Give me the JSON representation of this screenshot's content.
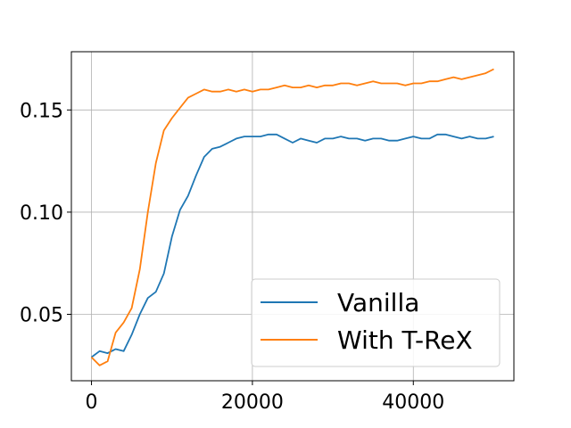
{
  "chart_data": {
    "type": "line",
    "title": "",
    "xlabel": "",
    "ylabel": "",
    "xlim": [
      -2500,
      52500
    ],
    "ylim": [
      0.0175,
      0.1785
    ],
    "xticks": [
      0,
      20000,
      40000
    ],
    "yticks": [
      0.05,
      0.1,
      0.15
    ],
    "xtick_labels": [
      "0",
      "20000",
      "40000"
    ],
    "ytick_labels": [
      "0.05",
      "0.10",
      "0.15"
    ],
    "grid": true,
    "legend_position": "lower-right",
    "series": [
      {
        "name": "Vanilla",
        "color": "#1f77b4",
        "x": [
          0,
          1000,
          2000,
          3000,
          4000,
          5000,
          6000,
          7000,
          8000,
          9000,
          10000,
          11000,
          12000,
          13000,
          14000,
          15000,
          16000,
          17000,
          18000,
          19000,
          20000,
          21000,
          22000,
          23000,
          24000,
          25000,
          26000,
          27000,
          28000,
          29000,
          30000,
          31000,
          32000,
          33000,
          34000,
          35000,
          36000,
          37000,
          38000,
          39000,
          40000,
          41000,
          42000,
          43000,
          44000,
          45000,
          46000,
          47000,
          48000,
          49000,
          50000
        ],
        "y": [
          0.029,
          0.032,
          0.031,
          0.033,
          0.032,
          0.04,
          0.05,
          0.058,
          0.061,
          0.07,
          0.088,
          0.101,
          0.108,
          0.118,
          0.127,
          0.131,
          0.132,
          0.134,
          0.136,
          0.137,
          0.137,
          0.137,
          0.138,
          0.138,
          0.136,
          0.134,
          0.136,
          0.135,
          0.134,
          0.136,
          0.136,
          0.137,
          0.136,
          0.136,
          0.135,
          0.136,
          0.136,
          0.135,
          0.135,
          0.136,
          0.137,
          0.136,
          0.136,
          0.138,
          0.138,
          0.137,
          0.136,
          0.137,
          0.136,
          0.136,
          0.137
        ]
      },
      {
        "name": "With T-ReX",
        "color": "#ff7f0e",
        "x": [
          0,
          1000,
          2000,
          3000,
          4000,
          5000,
          6000,
          7000,
          8000,
          9000,
          10000,
          11000,
          12000,
          13000,
          14000,
          15000,
          16000,
          17000,
          18000,
          19000,
          20000,
          21000,
          22000,
          23000,
          24000,
          25000,
          26000,
          27000,
          28000,
          29000,
          30000,
          31000,
          32000,
          33000,
          34000,
          35000,
          36000,
          37000,
          38000,
          39000,
          40000,
          41000,
          42000,
          43000,
          44000,
          45000,
          46000,
          47000,
          48000,
          49000,
          50000
        ],
        "y": [
          0.029,
          0.025,
          0.027,
          0.041,
          0.046,
          0.053,
          0.072,
          0.1,
          0.124,
          0.14,
          0.146,
          0.151,
          0.156,
          0.158,
          0.16,
          0.159,
          0.159,
          0.16,
          0.159,
          0.16,
          0.159,
          0.16,
          0.16,
          0.161,
          0.162,
          0.161,
          0.161,
          0.162,
          0.161,
          0.162,
          0.162,
          0.163,
          0.163,
          0.162,
          0.163,
          0.164,
          0.163,
          0.163,
          0.163,
          0.162,
          0.163,
          0.163,
          0.164,
          0.164,
          0.165,
          0.166,
          0.165,
          0.166,
          0.167,
          0.168,
          0.17
        ]
      }
    ]
  }
}
